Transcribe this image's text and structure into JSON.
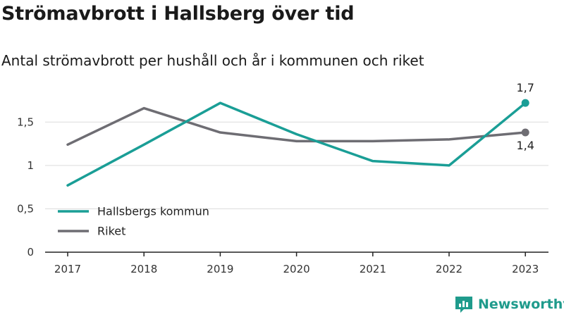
{
  "title": "Strömavbrott i Hallsberg över tid",
  "subtitle": "Antal strömavbrott per hushåll och år i kommunen och riket",
  "brand": {
    "name": "Newsworthy",
    "icon": "newsworthy-logo-icon",
    "color": "#1f9b8c"
  },
  "chart_data": {
    "type": "line",
    "title": "Strömavbrott i Hallsberg över tid",
    "subtitle": "Antal strömavbrott per hushåll och år i kommunen och riket",
    "categories": [
      "2017",
      "2018",
      "2019",
      "2020",
      "2021",
      "2022",
      "2023"
    ],
    "series": [
      {
        "name": "Hallsbergs kommun",
        "color": "#1a9e96",
        "values": [
          0.77,
          1.24,
          1.72,
          1.36,
          1.05,
          1.0,
          1.72
        ]
      },
      {
        "name": "Riket",
        "color": "#6e6d73",
        "values": [
          1.24,
          1.66,
          1.38,
          1.28,
          1.28,
          1.3,
          1.38
        ]
      }
    ],
    "yticks": [
      0,
      0.5,
      1,
      1.5
    ],
    "ytick_labels": [
      "0",
      "0,5",
      "1",
      "1,5"
    ],
    "ylim": [
      0,
      1.9
    ],
    "end_labels": [
      "1,7",
      "1,4"
    ],
    "grid": true,
    "legend_position": "bottom-left"
  }
}
